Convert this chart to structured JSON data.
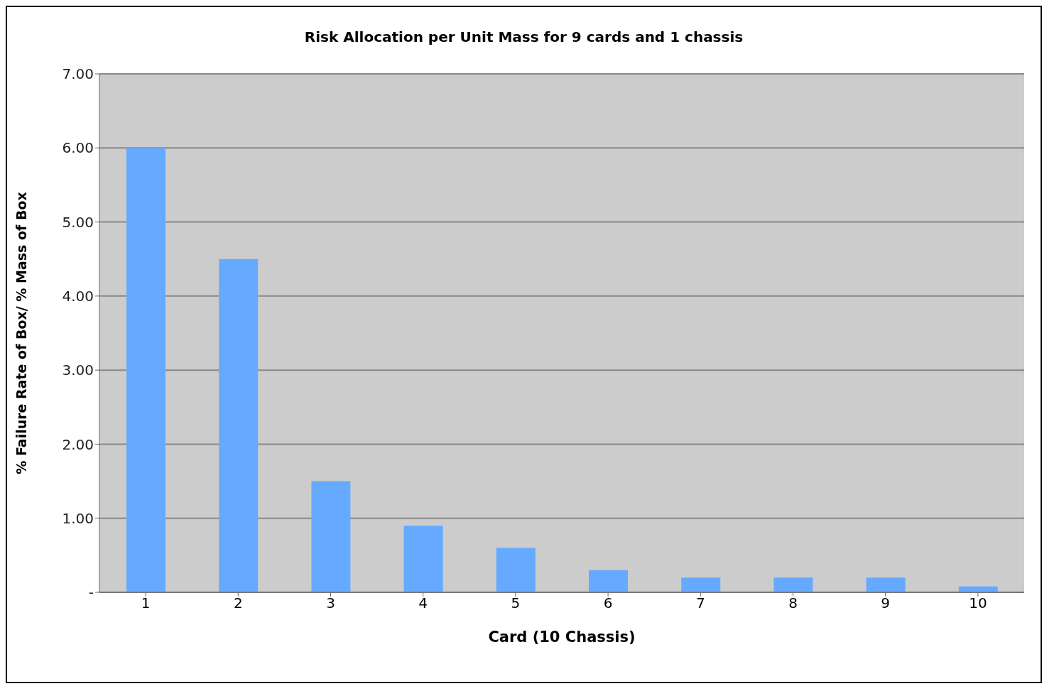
{
  "chart_data": {
    "type": "bar",
    "title": "Risk Allocation per Unit Mass for 9 cards and 1 chassis",
    "xlabel": "Card (10 Chassis)",
    "ylabel": "% Failure Rate of Box/ % Mass of Box",
    "categories": [
      "1",
      "2",
      "3",
      "4",
      "5",
      "6",
      "7",
      "8",
      "9",
      "10"
    ],
    "values": [
      6.0,
      4.5,
      1.5,
      0.9,
      0.6,
      0.3,
      0.2,
      0.2,
      0.2,
      0.08
    ],
    "color": "#66aaff",
    "ylim": [
      0,
      7
    ],
    "yticks": [
      {
        "value": 0,
        "label": "-"
      },
      {
        "value": 1,
        "label": "1.00"
      },
      {
        "value": 2,
        "label": "2.00"
      },
      {
        "value": 3,
        "label": "3.00"
      },
      {
        "value": 4,
        "label": "4.00"
      },
      {
        "value": 5,
        "label": "5.00"
      },
      {
        "value": 6,
        "label": "6.00"
      },
      {
        "value": 7,
        "label": "7.00"
      }
    ],
    "grid": "y"
  }
}
